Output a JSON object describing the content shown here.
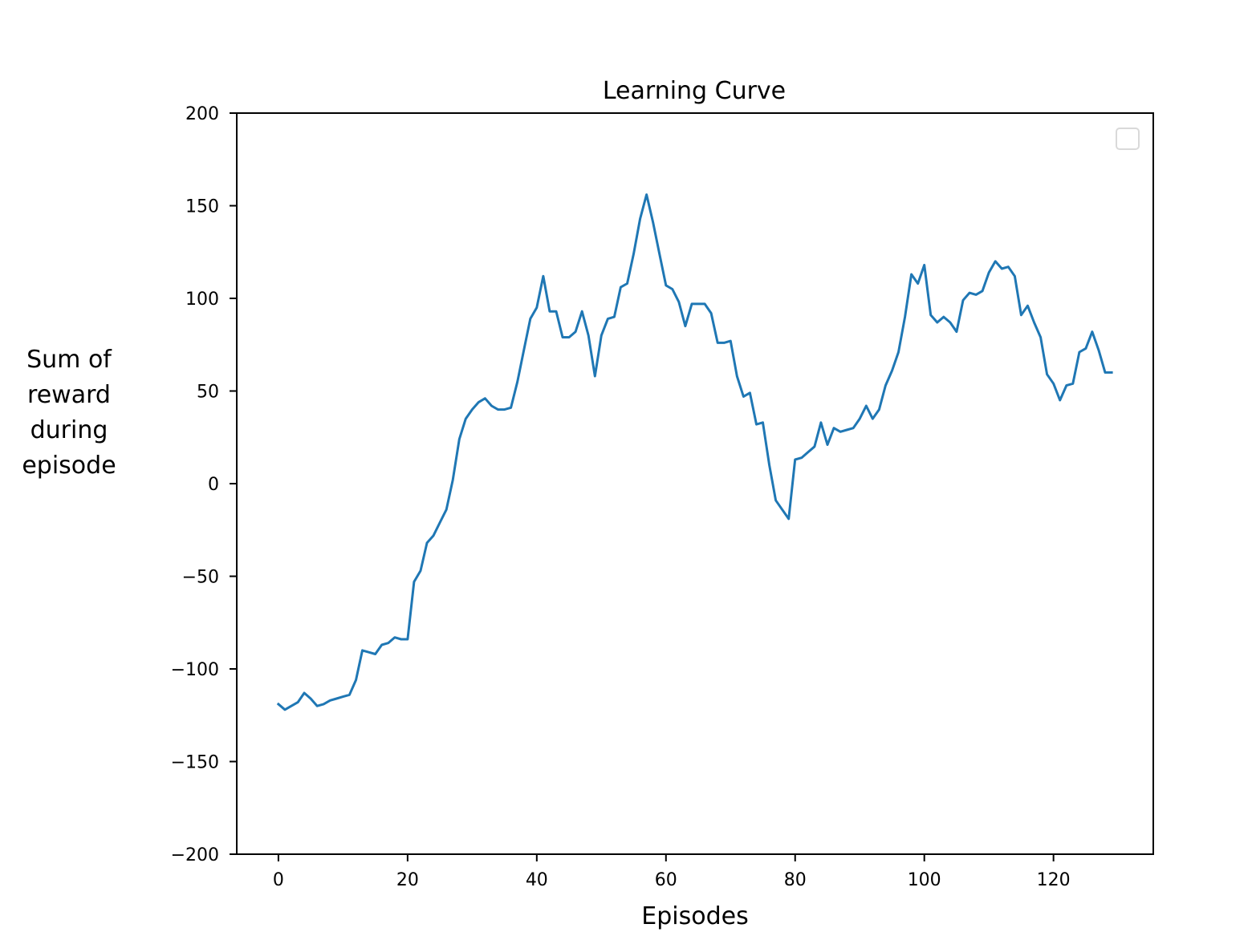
{
  "chart_data": {
    "type": "line",
    "title": "Learning Curve",
    "xlabel": "Episodes",
    "ylabel": "Sum of\nreward\nduring\nepisode",
    "xlim": [
      -6.45,
      135.45
    ],
    "ylim": [
      -200,
      200
    ],
    "xticks": [
      0,
      20,
      40,
      60,
      80,
      100,
      120
    ],
    "yticks": [
      -200,
      -150,
      -100,
      -50,
      0,
      50,
      100,
      150,
      200
    ],
    "grid": false,
    "legend": "top-right",
    "series": [
      {
        "color": "#1f77b4",
        "x": [
          0,
          1,
          2,
          3,
          4,
          5,
          6,
          7,
          8,
          9,
          10,
          11,
          12,
          13,
          14,
          15,
          16,
          17,
          18,
          19,
          20,
          21,
          22,
          23,
          24,
          25,
          26,
          27,
          28,
          29,
          30,
          31,
          32,
          33,
          34,
          35,
          36,
          37,
          38,
          39,
          40,
          41,
          42,
          43,
          44,
          45,
          46,
          47,
          48,
          49,
          50,
          51,
          52,
          53,
          54,
          55,
          56,
          57,
          58,
          59,
          60,
          61,
          62,
          63,
          64,
          65,
          66,
          67,
          68,
          69,
          70,
          71,
          72,
          73,
          74,
          75,
          76,
          77,
          78,
          79,
          80,
          81,
          82,
          83,
          84,
          85,
          86,
          87,
          88,
          89,
          90,
          91,
          92,
          93,
          94,
          95,
          96,
          97,
          98,
          99,
          100,
          101,
          102,
          103,
          104,
          105,
          106,
          107,
          108,
          109,
          110,
          111,
          112,
          113,
          114,
          115,
          116,
          117,
          118,
          119,
          120,
          121,
          122,
          123,
          124,
          125,
          126,
          127,
          128,
          129
        ],
        "y": [
          -119,
          -122,
          -120,
          -118,
          -113,
          -116,
          -120,
          -119,
          -117,
          -116,
          -115,
          -114,
          -106,
          -90,
          -91,
          -92,
          -87,
          -86,
          -83,
          -84,
          -84,
          -53,
          -47,
          -32,
          -28,
          -21,
          -14,
          2,
          24,
          35,
          40,
          44,
          46,
          42,
          40,
          40,
          41,
          55,
          72,
          89,
          95,
          112,
          93,
          93,
          79,
          79,
          82,
          93,
          80,
          58,
          80,
          89,
          90,
          106,
          108,
          124,
          143,
          156,
          141,
          124,
          107,
          105,
          98,
          85,
          97,
          97,
          97,
          92,
          76,
          76,
          77,
          58,
          47,
          49,
          32,
          33,
          10,
          -9,
          -14,
          -19,
          13,
          14,
          17,
          20,
          33,
          21,
          30,
          28,
          29,
          30,
          35,
          42,
          35,
          40,
          53,
          61,
          71,
          90,
          113,
          108,
          118,
          91,
          87,
          90,
          87,
          82,
          99,
          103,
          102,
          104,
          114,
          120,
          116,
          117,
          112,
          91,
          96,
          87,
          79,
          59,
          54,
          45,
          53,
          54,
          71,
          73,
          82,
          72,
          60,
          60
        ]
      }
    ]
  }
}
